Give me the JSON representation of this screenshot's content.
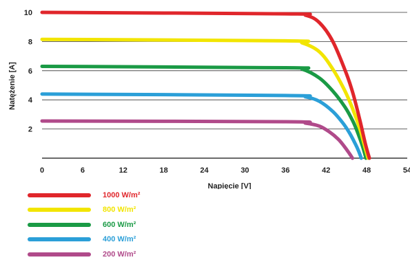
{
  "chart_data": {
    "type": "line",
    "xlabel": "Napięcie [V]",
    "ylabel": "Natężenie [A]",
    "xlim": [
      0,
      54
    ],
    "ylim": [
      0,
      10
    ],
    "xticks": [
      "0",
      "6",
      "12",
      "18",
      "24",
      "30",
      "36",
      "42",
      "48",
      "54"
    ],
    "yticks": [
      "2",
      "4",
      "6",
      "8",
      "10"
    ],
    "grid": "horizontal",
    "legend_position": "bottom-left",
    "series": [
      {
        "name": "1000 W/m²",
        "color": "#e0262b",
        "x": [
          0,
          36,
          39,
          41,
          43,
          45,
          46,
          47,
          47.8,
          48.4
        ],
        "y": [
          10.0,
          9.9,
          9.8,
          9.3,
          8.0,
          5.8,
          4.4,
          2.6,
          1.0,
          0
        ]
      },
      {
        "name": "800 W/m²",
        "color": "#f2e500",
        "x": [
          0,
          36,
          38.5,
          41,
          43,
          44.8,
          46,
          47,
          47.6,
          48.2
        ],
        "y": [
          8.15,
          8.05,
          7.9,
          7.3,
          6.1,
          4.6,
          3.3,
          2.0,
          1.0,
          0
        ]
      },
      {
        "name": "600 W/m²",
        "color": "#1a9a45",
        "x": [
          0,
          36,
          38.5,
          41,
          43,
          44.8,
          46,
          46.8,
          47.4,
          47.9
        ],
        "y": [
          6.3,
          6.2,
          6.1,
          5.5,
          4.6,
          3.5,
          2.5,
          1.6,
          0.8,
          0
        ]
      },
      {
        "name": "400 W/m²",
        "color": "#2b9fd8",
        "x": [
          0,
          36,
          39,
          41,
          43,
          44.5,
          45.5,
          46.3,
          46.8,
          47.2
        ],
        "y": [
          4.4,
          4.3,
          4.2,
          3.9,
          3.2,
          2.4,
          1.7,
          1.0,
          0.5,
          0
        ]
      },
      {
        "name": "200 W/m²",
        "color": "#b04a8a",
        "x": [
          0,
          36,
          39,
          41,
          42.5,
          43.8,
          44.7,
          45.4,
          45.9
        ],
        "y": [
          2.55,
          2.5,
          2.4,
          2.2,
          1.8,
          1.3,
          0.8,
          0.35,
          0
        ]
      }
    ]
  }
}
